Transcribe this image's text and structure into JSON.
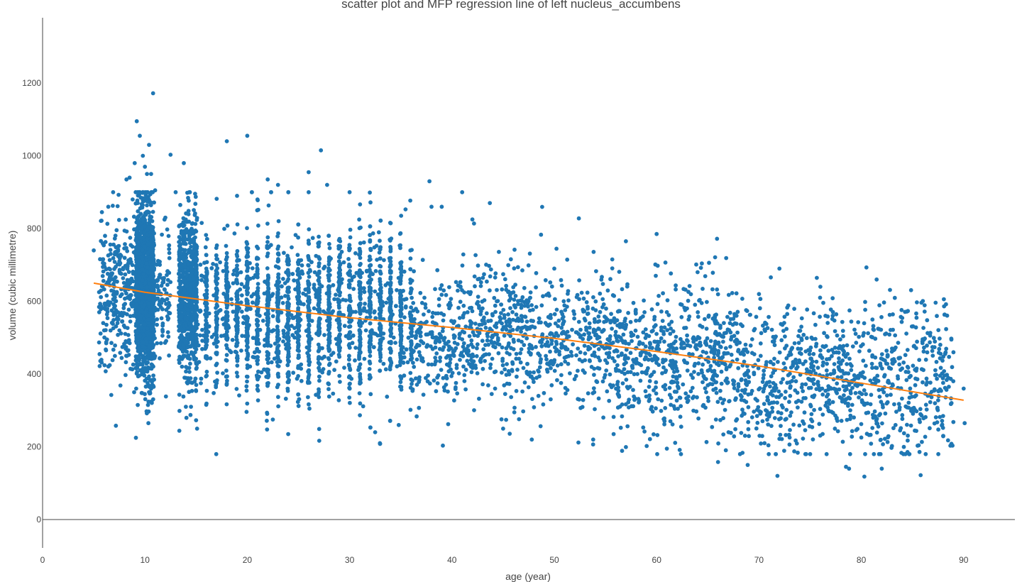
{
  "chart_data": {
    "type": "scatter",
    "title": "scatter plot and MFP regression line of left nucleus_accumbens",
    "xlabel": "age (year)",
    "ylabel": "volume (cubic millimetre)",
    "xlim": [
      0,
      95
    ],
    "ylim": [
      -80,
      1380
    ],
    "x_ticks": [
      0,
      10,
      20,
      30,
      40,
      50,
      60,
      70,
      80,
      90
    ],
    "y_ticks": [
      0,
      200,
      400,
      600,
      800,
      1000,
      1200
    ],
    "grid": false,
    "legend": "none",
    "series": [
      {
        "type": "scatter",
        "color": "#1f77b4",
        "points": [
          [
            5.0,
            740
          ],
          [
            5.8,
            845
          ],
          [
            6.1,
            780
          ],
          [
            6.3,
            495
          ],
          [
            6.5,
            690
          ],
          [
            7.0,
            640
          ],
          [
            7.5,
            520
          ],
          [
            7.8,
            560
          ],
          [
            8.2,
            935
          ],
          [
            8.5,
            940
          ],
          [
            8.8,
            880
          ],
          [
            9.0,
            980
          ],
          [
            9.2,
            1095
          ],
          [
            9.3,
            315
          ],
          [
            9.5,
            1055
          ],
          [
            9.8,
            1000
          ],
          [
            10.0,
            970
          ],
          [
            10.2,
            950
          ],
          [
            10.3,
            315
          ],
          [
            10.4,
            1030
          ],
          [
            10.6,
            950
          ],
          [
            10.8,
            1172
          ],
          [
            11.0,
            905
          ],
          [
            12.0,
            830
          ],
          [
            12.5,
            1003
          ],
          [
            13.0,
            900
          ],
          [
            13.8,
            980
          ],
          [
            14.0,
            310
          ],
          [
            14.5,
            310
          ],
          [
            15.1,
            250
          ],
          [
            18.0,
            1040
          ],
          [
            20.0,
            1055
          ],
          [
            19.0,
            890
          ],
          [
            21.0,
            880
          ],
          [
            22.0,
            935
          ],
          [
            22.5,
            275
          ],
          [
            23.0,
            920
          ],
          [
            24.0,
            235
          ],
          [
            26.0,
            955
          ],
          [
            27.2,
            1015
          ],
          [
            27.8,
            920
          ],
          [
            30.0,
            900
          ],
          [
            32.5,
            240
          ],
          [
            34.8,
            260
          ],
          [
            37.8,
            930
          ],
          [
            38.0,
            860
          ],
          [
            39.0,
            860
          ],
          [
            41.0,
            900
          ],
          [
            43.7,
            870
          ],
          [
            42.0,
            825
          ],
          [
            45.0,
            250
          ],
          [
            47.8,
            220
          ],
          [
            52.4,
            828
          ],
          [
            53.8,
            220
          ],
          [
            55.8,
            235
          ],
          [
            60.0,
            785
          ],
          [
            61.0,
            195
          ],
          [
            65.9,
            772
          ],
          [
            66.0,
            158
          ],
          [
            68.9,
            150
          ],
          [
            71.8,
            120
          ],
          [
            72.0,
            690
          ],
          [
            75.0,
            180
          ],
          [
            78.5,
            145
          ],
          [
            78.8,
            140
          ],
          [
            80.3,
            118
          ],
          [
            80.5,
            693
          ],
          [
            81.5,
            660
          ],
          [
            82.0,
            140
          ],
          [
            85.8,
            122
          ],
          [
            89.0,
            460
          ],
          [
            90.0,
            360
          ],
          [
            90.1,
            265
          ],
          [
            88.0,
            230
          ],
          [
            83.0,
            470
          ],
          [
            76.0,
            640
          ],
          [
            70.0,
            620
          ],
          [
            64.0,
            680
          ],
          [
            57.0,
            765
          ],
          [
            50.0,
            690
          ]
        ],
        "clusters": [
          {
            "x_center": 10.0,
            "x_spread": 0.9,
            "y_mean": 625,
            "y_sd": 115,
            "count": 1400
          },
          {
            "x_center": 14.2,
            "x_spread": 0.9,
            "y_mean": 610,
            "y_sd": 110,
            "count": 700
          },
          {
            "x_range": [
              5.5,
              12.5
            ],
            "y_mean": 630,
            "y_sd": 110,
            "count": 500
          },
          {
            "x_range": [
              15,
              36
            ],
            "y_mean": 565,
            "y_sd": 105,
            "count": 2600,
            "discrete_step": 1.0
          },
          {
            "x_range": [
              36,
              56
            ],
            "y_mean": 500,
            "y_sd": 95,
            "count": 900
          },
          {
            "x_range": [
              56,
              68
            ],
            "y_mean": 445,
            "y_sd": 100,
            "count": 600
          },
          {
            "x_range": [
              68,
              89
            ],
            "y_mean": 385,
            "y_sd": 100,
            "count": 900
          }
        ]
      },
      {
        "type": "line",
        "color": "#ff7f0e",
        "x": [
          5,
          10,
          20,
          30,
          40,
          50,
          60,
          70,
          80,
          90
        ],
        "y": [
          650,
          625,
          588,
          555,
          528,
          498,
          462,
          422,
          375,
          328
        ]
      }
    ]
  }
}
